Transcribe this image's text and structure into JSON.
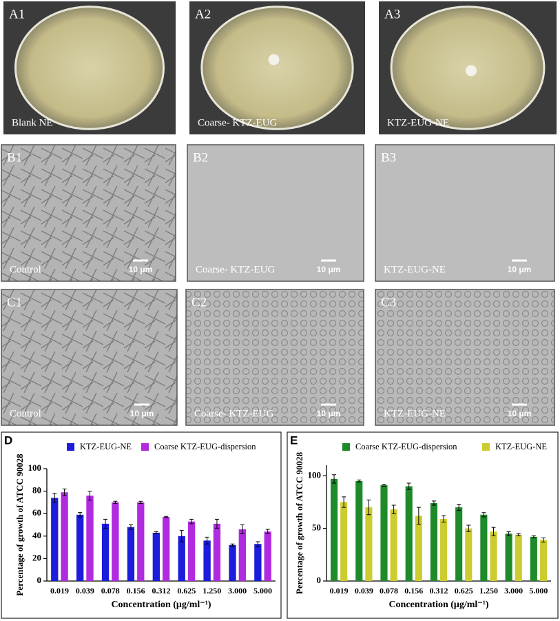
{
  "panels": {
    "A": [
      {
        "label": "A1",
        "caption": "Blank NE"
      },
      {
        "label": "A2",
        "caption": "Coarse- KTZ-EUG"
      },
      {
        "label": "A3",
        "caption": "KTZ-EUG-NE"
      }
    ],
    "B": [
      {
        "label": "B1",
        "caption": "Control",
        "scale": "10 μm"
      },
      {
        "label": "B2",
        "caption": "Coarse- KTZ-EUG",
        "scale": "10 μm"
      },
      {
        "label": "B3",
        "caption": "KTZ-EUG-NE",
        "scale": "10 μm"
      }
    ],
    "C": [
      {
        "label": "C1",
        "caption": "Control",
        "scale": "10 μm"
      },
      {
        "label": "C2",
        "caption": "Coarse- KTZ-EUG",
        "scale": "10 μm"
      },
      {
        "label": "C3",
        "caption": "KTZ-EUG-NE",
        "scale": "10 μm"
      }
    ]
  },
  "chart_data": [
    {
      "type": "bar",
      "panel_label": "D",
      "y_label": "Percentage of growth of ATCC 90028",
      "x_label": "Concentration (μg/ml⁻¹)",
      "categories": [
        "0.019",
        "0.039",
        "0.078",
        "0.156",
        "0.312",
        "0.625",
        "1.250",
        "3.000",
        "5.000"
      ],
      "series": [
        {
          "name": "KTZ-EUG-NE",
          "color": "#1c1cdc",
          "values": [
            74,
            59,
            51,
            48,
            43,
            40,
            36,
            32,
            33
          ],
          "errors": [
            4,
            2,
            4,
            2,
            1,
            5,
            3,
            1,
            2
          ]
        },
        {
          "name": "Coarse KTZ-EUG-dispersion",
          "color": "#b02be0",
          "values": [
            79,
            76,
            70,
            70,
            57,
            53,
            51,
            46,
            44
          ],
          "errors": [
            3,
            4,
            1,
            1,
            0.5,
            2,
            4,
            4,
            2
          ]
        }
      ],
      "ylim": [
        0,
        100
      ],
      "yticks": [
        0,
        20,
        40,
        60,
        80,
        100
      ]
    },
    {
      "type": "bar",
      "panel_label": "E",
      "y_label": "Percentage of growth of ATCC 90028",
      "x_label": "Concentration (μg/ml⁻¹)",
      "categories": [
        "0.019",
        "0.039",
        "0.078",
        "0.156",
        "0.312",
        "0.625",
        "1.250",
        "3.000",
        "5.000"
      ],
      "series": [
        {
          "name": "Coarse KTZ-EUG-dispersion",
          "color": "#1e8a2a",
          "values": [
            97,
            95,
            91,
            90,
            74,
            70,
            63,
            45,
            42
          ],
          "errors": [
            4,
            1,
            1,
            3,
            2,
            3,
            2,
            2,
            1
          ]
        },
        {
          "name": "KTZ-EUG-NE",
          "color": "#cccc30",
          "values": [
            75,
            70,
            68,
            62,
            59,
            50,
            47,
            44,
            39
          ],
          "errors": [
            5,
            7,
            4,
            8,
            3,
            3,
            4,
            1,
            2
          ]
        }
      ],
      "ylim": [
        0,
        110
      ],
      "yticks": [
        0,
        50,
        100
      ]
    }
  ]
}
